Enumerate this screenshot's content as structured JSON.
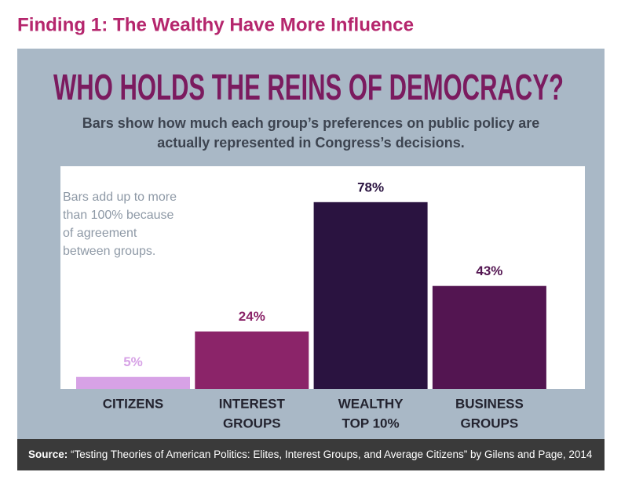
{
  "header": "Finding 1: The Wealthy Have More Influence",
  "chart_data": {
    "type": "bar",
    "title": "WHO HOLDS THE REINS OF DEMOCRACY?",
    "subtitle": [
      "Bars show how much each group’s preferences on public policy are",
      "actually represented in Congress’s decisions."
    ],
    "annotation": [
      "Bars add up to more",
      "than 100% because",
      "of agreement",
      "between groups."
    ],
    "categories": [
      [
        "CITIZENS"
      ],
      [
        "INTEREST",
        "GROUPS"
      ],
      [
        "WEALTHY",
        "TOP 10%"
      ],
      [
        "BUSINESS",
        "GROUPS"
      ]
    ],
    "values": [
      5,
      24,
      78,
      43
    ],
    "value_labels": [
      "5%",
      "24%",
      "78%",
      "43%"
    ],
    "colors": [
      "#d7a2e6",
      "#8b2469",
      "#2a1340",
      "#531551"
    ],
    "ylim": [
      0,
      93
    ]
  },
  "source": {
    "label": "Source:",
    "text": "“Testing Theories of American Politics: Elites, Interest Groups, and Average Citizens” by Gilens and Page, 2014"
  }
}
